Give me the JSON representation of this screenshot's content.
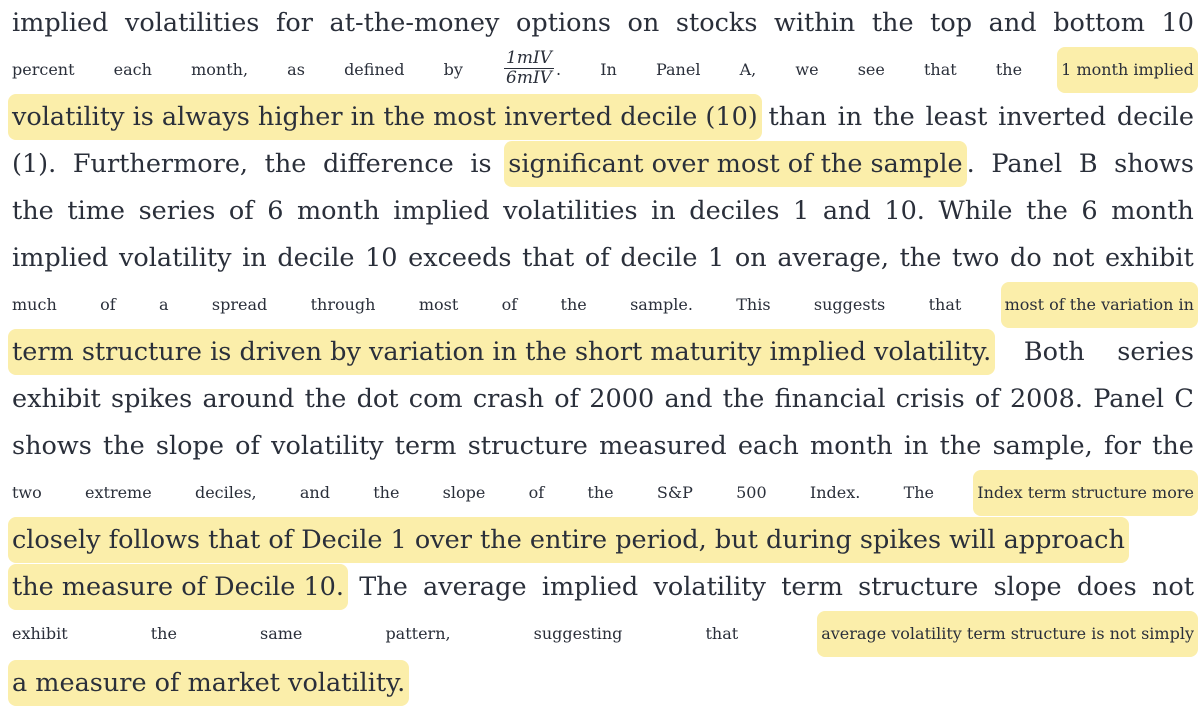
{
  "lines": [
    [
      "implied",
      "volatilities",
      "for",
      "at-the-money",
      "options",
      "on",
      "stocks",
      "within",
      "the",
      "top",
      "and",
      "bottom",
      "10"
    ],
    [
      "percent",
      "each",
      "month,",
      "as",
      "defined",
      "by",
      "__FRAC__",
      "In",
      "Panel",
      "A,",
      "we",
      "see",
      "that",
      "the",
      "1 month implied"
    ],
    [
      "volatility is always higher in the most inverted decile (10)",
      "than",
      "in",
      "the",
      "least",
      "inverted",
      "decile"
    ],
    [
      "(1).",
      "Furthermore,",
      "the",
      "difference",
      "is",
      "significant over most of the sample",
      ".",
      "Panel",
      "B",
      "shows"
    ],
    [
      "the",
      "time",
      "series",
      "of",
      "6",
      "month",
      "implied",
      "volatilities",
      "in",
      "deciles",
      "1",
      "and",
      "10.",
      "While",
      "the",
      "6",
      "month"
    ],
    [
      "implied",
      "volatility",
      "in",
      "decile",
      "10",
      "exceeds",
      "that",
      "of",
      "decile",
      "1",
      "on",
      "average,",
      "the",
      "two",
      "do",
      "not",
      "exhibit"
    ],
    [
      "much",
      "of",
      "a",
      "spread",
      "through",
      "most",
      "of",
      "the",
      "sample.",
      "This",
      "suggests",
      "that",
      "most of the variation in"
    ],
    [
      "term structure is driven by variation in the short maturity implied volatility.",
      "Both",
      "series"
    ],
    [
      "exhibit",
      "spikes",
      "around",
      "the",
      "dot",
      "com",
      "crash",
      "of",
      "2000",
      "and",
      "the",
      "financial",
      "crisis",
      "of",
      "2008.",
      "Panel",
      "C"
    ],
    [
      "shows",
      "the",
      "slope",
      "of",
      "volatility",
      "term",
      "structure",
      "measured",
      "each",
      "month",
      "in",
      "the",
      "sample,",
      "for",
      "the"
    ],
    [
      "two",
      "extreme",
      "deciles,",
      "and",
      "the",
      "slope",
      "of",
      "the",
      "S&P",
      "500",
      "Index.",
      "The",
      "Index term structure more"
    ],
    [
      "closely follows that of Decile 1 over the entire period, but during spikes will approach"
    ],
    [
      "the measure of Decile 10.",
      "The",
      "average",
      "implied",
      "volatility",
      "term",
      "structure",
      "slope",
      "does",
      "not"
    ],
    [
      "exhibit",
      "the",
      "same",
      "pattern,",
      "suggesting",
      "that",
      "average volatility term structure is not simply"
    ],
    [
      "a measure of market volatility."
    ]
  ],
  "highlighted": {
    "1": [
      14
    ],
    "2": [
      0
    ],
    "3": [
      5
    ],
    "6": [
      12
    ],
    "7": [
      0
    ],
    "10": [
      12
    ],
    "11": [
      0
    ],
    "12": [
      0
    ],
    "13": [
      6
    ],
    "14": [
      0
    ]
  },
  "fraction": {
    "numerator": "1mIV",
    "denominator": "6mIV",
    "suffix": "."
  },
  "highlight_color": "#fbeeaa",
  "text_color": "#2a2f3a"
}
